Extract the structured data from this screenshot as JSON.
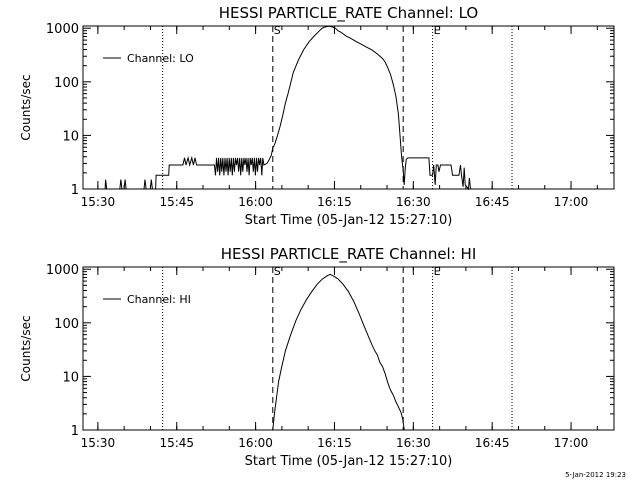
{
  "footer_timestamp": "5-Jan-2012 19:23",
  "chart_data": [
    {
      "type": "line",
      "title": "HESSI PARTICLE_RATE Channel: LO",
      "xlabel": "Start Time (05-Jan-12 15:27:10)",
      "ylabel": "Counts/sec",
      "x_unit": "minutes after 15:27:10",
      "xlim": [
        0,
        101
      ],
      "ylim": [
        1,
        1100
      ],
      "y_scale": "log",
      "x_ticks": [
        {
          "x": 2.83,
          "label": "15:30"
        },
        {
          "x": 17.83,
          "label": "15:45"
        },
        {
          "x": 32.83,
          "label": "16:00"
        },
        {
          "x": 47.83,
          "label": "16:15"
        },
        {
          "x": 62.83,
          "label": "16:30"
        },
        {
          "x": 77.83,
          "label": "16:45"
        },
        {
          "x": 92.83,
          "label": "17:00"
        }
      ],
      "y_ticks": [
        {
          "y": 1,
          "label": "1"
        },
        {
          "y": 10,
          "label": "10"
        },
        {
          "y": 100,
          "label": "100"
        },
        {
          "y": 1000,
          "label": "1000"
        }
      ],
      "legend": {
        "label": "Channel: LO",
        "position": "top-left"
      },
      "markers": [
        {
          "x": 0,
          "style": "dotted",
          "label": ""
        },
        {
          "x": 15.15,
          "style": "dotted",
          "label": ""
        },
        {
          "x": 36.1,
          "style": "dashed",
          "label": "S"
        },
        {
          "x": 60.9,
          "style": "dashed",
          "label": ""
        },
        {
          "x": 66.5,
          "style": "dotted",
          "label": "E"
        },
        {
          "x": 81.6,
          "style": "dotted",
          "label": ""
        }
      ],
      "series": [
        {
          "name": "Channel: LO",
          "points": [
            [
              4.2,
              1
            ],
            [
              4.3,
              1.5
            ],
            [
              4.5,
              1
            ],
            [
              7.0,
              1
            ],
            [
              7.2,
              1.5
            ],
            [
              7.4,
              1
            ],
            [
              7.8,
              1
            ],
            [
              8.0,
              1.5
            ],
            [
              8.2,
              1
            ],
            [
              11.6,
              1
            ],
            [
              11.8,
              1.5
            ],
            [
              12.0,
              1
            ],
            [
              12.8,
              1
            ],
            [
              13.0,
              1.5
            ],
            [
              13.2,
              1
            ],
            [
              13.8,
              1
            ],
            [
              13.9,
              1.8
            ],
            [
              16.3,
              1.8
            ],
            [
              16.4,
              2.8
            ],
            [
              19.0,
              2.8
            ],
            [
              19.3,
              3.8
            ],
            [
              19.6,
              2.8
            ],
            [
              20.0,
              3.8
            ],
            [
              20.3,
              2.8
            ],
            [
              20.7,
              3.8
            ],
            [
              21.0,
              2.8
            ],
            [
              21.3,
              3.8
            ],
            [
              21.6,
              2.8
            ],
            [
              25.0,
              2.8
            ],
            [
              25.2,
              1.8
            ],
            [
              25.4,
              3.8
            ],
            [
              25.6,
              2.1
            ],
            [
              25.8,
              3.8
            ],
            [
              26.0,
              1.8
            ],
            [
              26.2,
              3.8
            ],
            [
              26.4,
              2.1
            ],
            [
              26.6,
              3.8
            ],
            [
              26.8,
              1.8
            ],
            [
              27.0,
              3.8
            ],
            [
              27.2,
              2.1
            ],
            [
              27.4,
              3.8
            ],
            [
              27.6,
              1.8
            ],
            [
              27.8,
              3.8
            ],
            [
              28.0,
              2.1
            ],
            [
              28.2,
              3.8
            ],
            [
              28.4,
              1.8
            ],
            [
              28.6,
              3.8
            ],
            [
              28.8,
              2.1
            ],
            [
              29.0,
              3.8
            ],
            [
              29.2,
              2.8
            ],
            [
              29.4,
              3.8
            ],
            [
              29.6,
              2.1
            ],
            [
              29.8,
              3.8
            ],
            [
              30.0,
              1.8
            ],
            [
              30.2,
              3.8
            ],
            [
              30.4,
              2.1
            ],
            [
              30.6,
              3.8
            ],
            [
              30.8,
              2.8
            ],
            [
              31.0,
              3.8
            ],
            [
              31.2,
              2.1
            ],
            [
              31.4,
              3.8
            ],
            [
              31.6,
              1.8
            ],
            [
              31.8,
              3.8
            ],
            [
              32.0,
              2.8
            ],
            [
              32.2,
              3.8
            ],
            [
              32.4,
              2.1
            ],
            [
              32.6,
              3.8
            ],
            [
              32.8,
              1.8
            ],
            [
              33.0,
              3.8
            ],
            [
              33.2,
              2.1
            ],
            [
              33.4,
              3.8
            ],
            [
              33.6,
              2.8
            ],
            [
              33.8,
              3.8
            ],
            [
              34.0,
              1.8
            ],
            [
              34.2,
              3.8
            ],
            [
              34.4,
              2.8
            ],
            [
              35.0,
              3.0
            ],
            [
              35.4,
              3.5
            ],
            [
              35.8,
              4.2
            ],
            [
              36.1,
              5.8
            ],
            [
              36.5,
              7
            ],
            [
              37,
              10
            ],
            [
              37.5,
              15
            ],
            [
              38,
              24
            ],
            [
              38.5,
              40
            ],
            [
              39,
              60
            ],
            [
              39.5,
              95
            ],
            [
              40,
              150
            ],
            [
              41,
              260
            ],
            [
              42,
              400
            ],
            [
              43,
              560
            ],
            [
              44,
              720
            ],
            [
              45,
              900
            ],
            [
              45.5,
              1000
            ],
            [
              46,
              1050
            ],
            [
              46.5,
              1080
            ],
            [
              47,
              1080
            ],
            [
              47.5,
              1050
            ],
            [
              48,
              1000
            ],
            [
              48.5,
              900
            ],
            [
              49,
              850
            ],
            [
              50,
              720
            ],
            [
              51,
              640
            ],
            [
              52,
              560
            ],
            [
              53,
              500
            ],
            [
              54,
              440
            ],
            [
              55,
              390
            ],
            [
              56,
              330
            ],
            [
              57,
              270
            ],
            [
              57.5,
              230
            ],
            [
              58,
              180
            ],
            [
              58.5,
              135
            ],
            [
              59,
              90
            ],
            [
              59.5,
              55
            ],
            [
              60,
              25
            ],
            [
              60.3,
              10
            ],
            [
              60.6,
              4
            ],
            [
              60.9,
              2.2
            ],
            [
              61.1,
              1.2
            ],
            [
              61.3,
              2.5
            ],
            [
              61.5,
              3.6
            ],
            [
              61.8,
              3.8
            ],
            [
              65.8,
              3.8
            ],
            [
              66.0,
              1.8
            ],
            [
              66.5,
              1.8
            ],
            [
              66.7,
              2.8
            ],
            [
              67.0,
              1.2
            ],
            [
              67.2,
              2.8
            ],
            [
              67.5,
              2.8
            ],
            [
              67.7,
              2.1
            ],
            [
              68.0,
              2.8
            ],
            [
              70.0,
              2.8
            ],
            [
              70.3,
              1.8
            ],
            [
              71.5,
              1.8
            ],
            [
              71.8,
              2.8
            ],
            [
              72.0,
              1.8
            ],
            [
              72.3,
              1.1
            ],
            [
              72.5,
              2.5
            ],
            [
              72.7,
              1.2
            ],
            [
              73.3,
              1
            ],
            [
              73.5,
              1.6
            ],
            [
              73.7,
              1
            ]
          ]
        }
      ]
    },
    {
      "type": "line",
      "title": "HESSI PARTICLE_RATE Channel: HI",
      "xlabel": "Start Time (05-Jan-12 15:27:10)",
      "ylabel": "Counts/sec",
      "x_unit": "minutes after 15:27:10",
      "xlim": [
        0,
        101
      ],
      "ylim": [
        1,
        1100
      ],
      "y_scale": "log",
      "x_ticks": [
        {
          "x": 2.83,
          "label": "15:30"
        },
        {
          "x": 17.83,
          "label": "15:45"
        },
        {
          "x": 32.83,
          "label": "16:00"
        },
        {
          "x": 47.83,
          "label": "16:15"
        },
        {
          "x": 62.83,
          "label": "16:30"
        },
        {
          "x": 77.83,
          "label": "16:45"
        },
        {
          "x": 92.83,
          "label": "17:00"
        }
      ],
      "y_ticks": [
        {
          "y": 1,
          "label": "1"
        },
        {
          "y": 10,
          "label": "10"
        },
        {
          "y": 100,
          "label": "100"
        },
        {
          "y": 1000,
          "label": "1000"
        }
      ],
      "legend": {
        "label": "Channel: HI",
        "position": "top-left"
      },
      "markers": [
        {
          "x": 0,
          "style": "dotted",
          "label": ""
        },
        {
          "x": 15.15,
          "style": "dotted",
          "label": ""
        },
        {
          "x": 36.1,
          "style": "dashed",
          "label": "S"
        },
        {
          "x": 60.9,
          "style": "dashed",
          "label": ""
        },
        {
          "x": 66.5,
          "style": "dotted",
          "label": "E"
        },
        {
          "x": 81.6,
          "style": "dotted",
          "label": ""
        }
      ],
      "series": [
        {
          "name": "Channel: HI",
          "points": [
            [
              36.1,
              1
            ],
            [
              36.4,
              2
            ],
            [
              36.8,
              4
            ],
            [
              37.2,
              8
            ],
            [
              37.8,
              15
            ],
            [
              38.5,
              30
            ],
            [
              39.5,
              60
            ],
            [
              40.5,
              110
            ],
            [
              41.5,
              180
            ],
            [
              42.5,
              270
            ],
            [
              43.5,
              380
            ],
            [
              44.5,
              520
            ],
            [
              45.5,
              650
            ],
            [
              46.5,
              760
            ],
            [
              47,
              800
            ],
            [
              47.5,
              760
            ],
            [
              48.5,
              660
            ],
            [
              49.5,
              520
            ],
            [
              50.5,
              380
            ],
            [
              51.5,
              250
            ],
            [
              52.5,
              150
            ],
            [
              53.5,
              85
            ],
            [
              54,
              65
            ],
            [
              54.5,
              50
            ],
            [
              55,
              38
            ],
            [
              55.5,
              30
            ],
            [
              56,
              25
            ],
            [
              56.5,
              18
            ],
            [
              57,
              15
            ],
            [
              57.5,
              11
            ],
            [
              58,
              7.5
            ],
            [
              58.5,
              5.5
            ],
            [
              59,
              4.5
            ],
            [
              59.5,
              3.4
            ],
            [
              60,
              2.7
            ],
            [
              60.5,
              2.1
            ],
            [
              60.8,
              1.6
            ],
            [
              61,
              1.2
            ],
            [
              61.1,
              1
            ]
          ]
        }
      ]
    }
  ]
}
